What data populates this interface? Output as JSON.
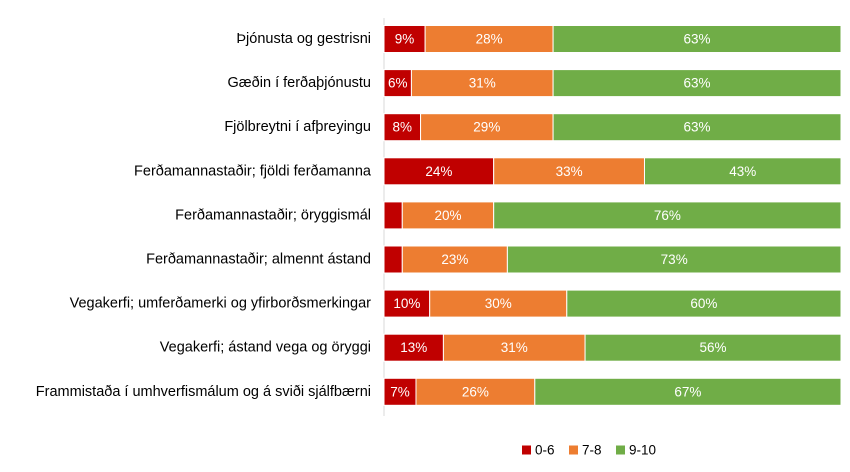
{
  "chart_data": {
    "type": "bar",
    "orientation": "horizontal",
    "stacked": true,
    "percent_stacked": true,
    "categories": [
      "Þjónusta og gestrisni",
      "Gæðin í ferðaþjónustu",
      "Fjölbreytni í afþreyingu",
      "Ferðamannastaðir; fjöldi ferðamanna",
      "Ferðamannastaðir; öryggismál",
      "Ferðamannastaðir; almennt ástand",
      "Vegakerfi; umferðamerki og yfirborðsmerkingar",
      "Vegakerfi; ástand vega og öryggi",
      "Frammistaða í umhverfismálum og á sviði sjálfbærni"
    ],
    "series": [
      {
        "name": "0-6",
        "color": "#C00000",
        "values": [
          9,
          6,
          8,
          24,
          4,
          4,
          10,
          13,
          7
        ],
        "labels": [
          "9%",
          "6%",
          "8%",
          "24%",
          "",
          "",
          "10%",
          "13%",
          "7%"
        ]
      },
      {
        "name": "7-8",
        "color": "#ED7D31",
        "values": [
          28,
          31,
          29,
          33,
          20,
          23,
          30,
          31,
          26
        ],
        "labels": [
          "28%",
          "31%",
          "29%",
          "33%",
          "20%",
          "23%",
          "30%",
          "31%",
          "26%"
        ]
      },
      {
        "name": "9-10",
        "color": "#70AD47",
        "values": [
          63,
          63,
          63,
          43,
          76,
          73,
          60,
          56,
          67
        ],
        "labels": [
          "63%",
          "63%",
          "63%",
          "43%",
          "76%",
          "73%",
          "60%",
          "56%",
          "67%"
        ]
      }
    ],
    "xlim": [
      0,
      100
    ],
    "grid": false,
    "legend": "bottom"
  }
}
